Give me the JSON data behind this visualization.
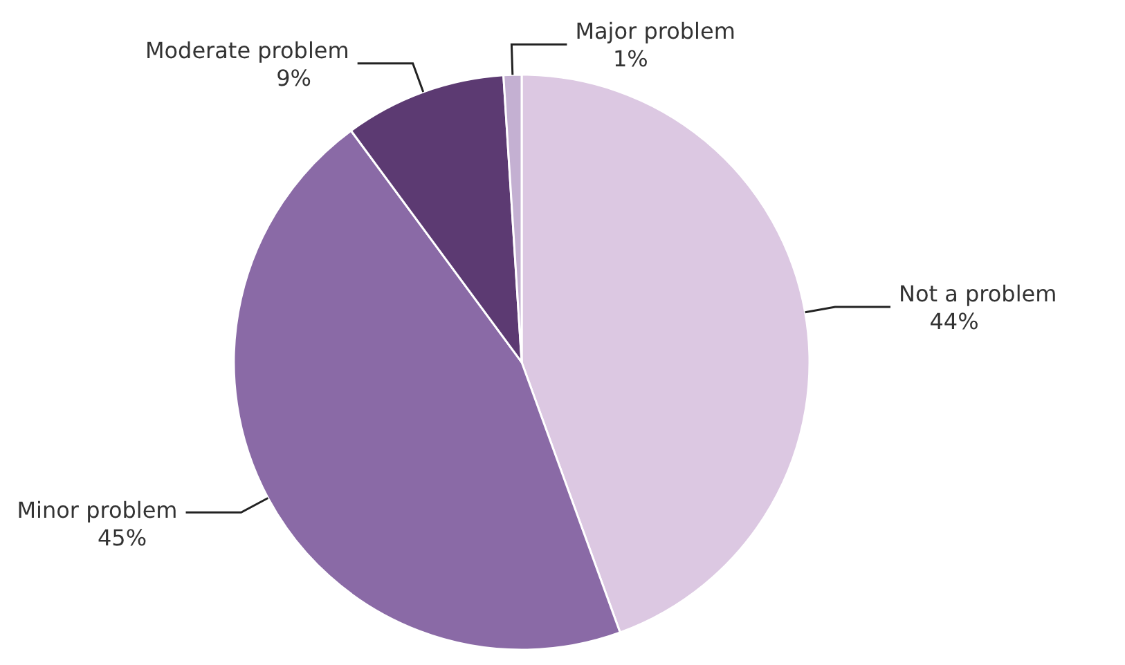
{
  "chart_data": {
    "type": "pie",
    "categories": [
      "Not a problem",
      "Minor problem",
      "Moderate problem",
      "Major problem"
    ],
    "values": [
      44,
      45,
      9,
      1
    ],
    "colors": [
      "#dcc8e2",
      "#8a6aa6",
      "#5c3a72",
      "#c4b0d2"
    ],
    "value_labels": [
      "44%",
      "45%",
      "9%",
      "1%"
    ]
  }
}
